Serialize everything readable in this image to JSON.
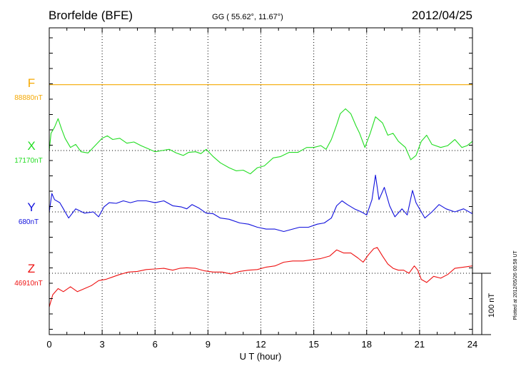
{
  "header": {
    "station": "Brorfelde (BFE)",
    "coords": "GG ( 55.62°,  11.67°)",
    "date": "2012/04/25"
  },
  "plotted_note": "Plotted at 2012/05/26 00:58 UT",
  "scale_label": "100 nT",
  "chart_data": {
    "type": "line",
    "xlabel": "U T (hour)",
    "xlim": [
      0,
      24
    ],
    "x_ticks": [
      "0",
      "3",
      "6",
      "9",
      "12",
      "15",
      "18",
      "21",
      "24"
    ],
    "grid": true,
    "y_units_label": "nT offset from baseline (scale bar: 100 nT)",
    "series": [
      {
        "name": "F",
        "baseline_label": "88880nT",
        "color": "#f5a800",
        "points": [
          [
            0,
            5
          ],
          [
            24,
            5
          ]
        ]
      },
      {
        "name": "X",
        "baseline_label": "17170nT",
        "color": "#22dd22",
        "points": [
          [
            0,
            0
          ],
          [
            0.1,
            28
          ],
          [
            0.3,
            38
          ],
          [
            0.5,
            52
          ],
          [
            0.7,
            35
          ],
          [
            0.9,
            20
          ],
          [
            1.2,
            5
          ],
          [
            1.5,
            10
          ],
          [
            1.8,
            -2
          ],
          [
            2.2,
            -4
          ],
          [
            2.6,
            8
          ],
          [
            3,
            20
          ],
          [
            3.3,
            24
          ],
          [
            3.6,
            18
          ],
          [
            4,
            20
          ],
          [
            4.4,
            12
          ],
          [
            4.8,
            14
          ],
          [
            5.2,
            8
          ],
          [
            5.6,
            3
          ],
          [
            6,
            -2
          ],
          [
            6.4,
            0
          ],
          [
            6.8,
            2
          ],
          [
            7.2,
            -4
          ],
          [
            7.6,
            -8
          ],
          [
            7.9,
            -3
          ],
          [
            8.3,
            -2
          ],
          [
            8.6,
            -5
          ],
          [
            8.9,
            2
          ],
          [
            9.3,
            -10
          ],
          [
            9.7,
            -20
          ],
          [
            10.2,
            -28
          ],
          [
            10.6,
            -33
          ],
          [
            11,
            -32
          ],
          [
            11.4,
            -38
          ],
          [
            11.8,
            -28
          ],
          [
            12.2,
            -25
          ],
          [
            12.7,
            -12
          ],
          [
            13.1,
            -10
          ],
          [
            13.6,
            -3
          ],
          [
            14.1,
            -3
          ],
          [
            14.6,
            5
          ],
          [
            15,
            5
          ],
          [
            15.4,
            8
          ],
          [
            15.7,
            2
          ],
          [
            16,
            18
          ],
          [
            16.3,
            42
          ],
          [
            16.5,
            60
          ],
          [
            16.8,
            68
          ],
          [
            17.1,
            60
          ],
          [
            17.4,
            40
          ],
          [
            17.6,
            28
          ],
          [
            17.9,
            5
          ],
          [
            18.2,
            28
          ],
          [
            18.5,
            55
          ],
          [
            18.9,
            45
          ],
          [
            19.2,
            25
          ],
          [
            19.5,
            28
          ],
          [
            19.8,
            15
          ],
          [
            20.2,
            5
          ],
          [
            20.5,
            -15
          ],
          [
            20.8,
            -8
          ],
          [
            21.1,
            15
          ],
          [
            21.4,
            25
          ],
          [
            21.7,
            10
          ],
          [
            22.2,
            5
          ],
          [
            22.6,
            8
          ],
          [
            23,
            18
          ],
          [
            23.4,
            5
          ],
          [
            23.7,
            8
          ],
          [
            24,
            15
          ]
        ]
      },
      {
        "name": "Y",
        "baseline_label": "680nT",
        "color": "#1010dd",
        "points": [
          [
            0,
            0
          ],
          [
            0.15,
            30
          ],
          [
            0.3,
            20
          ],
          [
            0.6,
            15
          ],
          [
            0.8,
            5
          ],
          [
            1.1,
            -10
          ],
          [
            1.5,
            5
          ],
          [
            2,
            -2
          ],
          [
            2.5,
            0
          ],
          [
            2.8,
            -8
          ],
          [
            3.1,
            8
          ],
          [
            3.4,
            15
          ],
          [
            3.8,
            14
          ],
          [
            4.2,
            18
          ],
          [
            4.6,
            15
          ],
          [
            5,
            18
          ],
          [
            5.5,
            18
          ],
          [
            6,
            15
          ],
          [
            6.5,
            18
          ],
          [
            7,
            10
          ],
          [
            7.5,
            8
          ],
          [
            7.8,
            5
          ],
          [
            8.1,
            12
          ],
          [
            8.5,
            6
          ],
          [
            8.9,
            -2
          ],
          [
            9.3,
            -3
          ],
          [
            9.7,
            -10
          ],
          [
            10.2,
            -12
          ],
          [
            10.8,
            -18
          ],
          [
            11.3,
            -20
          ],
          [
            11.8,
            -25
          ],
          [
            12.3,
            -28
          ],
          [
            12.8,
            -28
          ],
          [
            13.3,
            -32
          ],
          [
            13.8,
            -28
          ],
          [
            14.2,
            -25
          ],
          [
            14.7,
            -25
          ],
          [
            15.2,
            -20
          ],
          [
            15.6,
            -18
          ],
          [
            16,
            -10
          ],
          [
            16.3,
            10
          ],
          [
            16.6,
            18
          ],
          [
            16.9,
            12
          ],
          [
            17.3,
            5
          ],
          [
            17.7,
            0
          ],
          [
            18,
            -5
          ],
          [
            18.3,
            20
          ],
          [
            18.5,
            60
          ],
          [
            18.7,
            20
          ],
          [
            19,
            40
          ],
          [
            19.3,
            10
          ],
          [
            19.6,
            -8
          ],
          [
            20,
            5
          ],
          [
            20.3,
            -5
          ],
          [
            20.6,
            35
          ],
          [
            20.8,
            15
          ],
          [
            21.1,
            0
          ],
          [
            21.3,
            -10
          ],
          [
            21.7,
            0
          ],
          [
            22.1,
            12
          ],
          [
            22.5,
            5
          ],
          [
            23,
            0
          ],
          [
            23.5,
            5
          ],
          [
            24,
            -3
          ]
        ]
      },
      {
        "name": "Z",
        "baseline_label": "46910nT",
        "color": "#ee1111",
        "points": [
          [
            0,
            -55
          ],
          [
            0.2,
            -35
          ],
          [
            0.5,
            -25
          ],
          [
            0.8,
            -30
          ],
          [
            1.2,
            -22
          ],
          [
            1.6,
            -30
          ],
          [
            2,
            -25
          ],
          [
            2.4,
            -20
          ],
          [
            2.8,
            -12
          ],
          [
            3.2,
            -10
          ],
          [
            3.6,
            -6
          ],
          [
            4,
            -2
          ],
          [
            4.5,
            2
          ],
          [
            5,
            3
          ],
          [
            5.5,
            6
          ],
          [
            6,
            7
          ],
          [
            6.5,
            8
          ],
          [
            7,
            5
          ],
          [
            7.4,
            8
          ],
          [
            7.8,
            9
          ],
          [
            8.3,
            8
          ],
          [
            8.8,
            4
          ],
          [
            9.3,
            2
          ],
          [
            9.8,
            2
          ],
          [
            10.3,
            -1
          ],
          [
            10.8,
            3
          ],
          [
            11.3,
            5
          ],
          [
            11.8,
            6
          ],
          [
            12.3,
            10
          ],
          [
            12.8,
            12
          ],
          [
            13.3,
            18
          ],
          [
            13.8,
            20
          ],
          [
            14.4,
            20
          ],
          [
            14.9,
            22
          ],
          [
            15.4,
            24
          ],
          [
            15.9,
            28
          ],
          [
            16.3,
            38
          ],
          [
            16.7,
            33
          ],
          [
            17.1,
            33
          ],
          [
            17.5,
            25
          ],
          [
            17.8,
            18
          ],
          [
            18.1,
            30
          ],
          [
            18.4,
            40
          ],
          [
            18.6,
            42
          ],
          [
            18.9,
            28
          ],
          [
            19.2,
            15
          ],
          [
            19.5,
            8
          ],
          [
            19.8,
            5
          ],
          [
            20.1,
            5
          ],
          [
            20.4,
            0
          ],
          [
            20.7,
            12
          ],
          [
            20.9,
            5
          ],
          [
            21.1,
            -10
          ],
          [
            21.4,
            -15
          ],
          [
            21.8,
            -5
          ],
          [
            22.2,
            -8
          ],
          [
            22.6,
            -2
          ],
          [
            23,
            8
          ],
          [
            23.5,
            10
          ],
          [
            24,
            12
          ]
        ]
      }
    ]
  }
}
